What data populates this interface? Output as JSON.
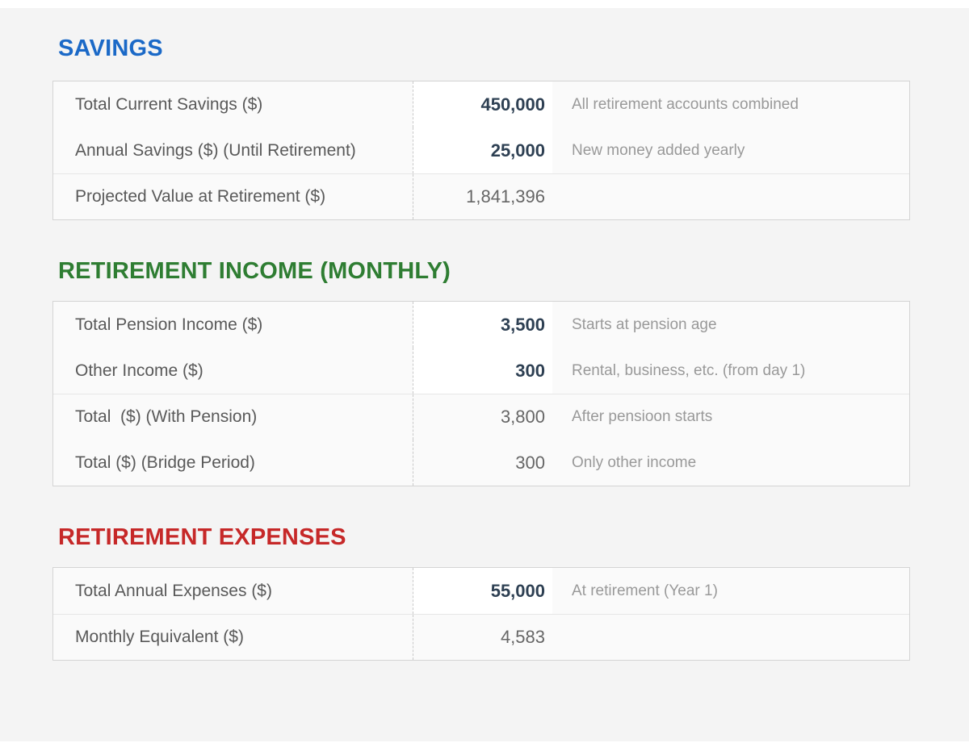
{
  "colors": {
    "page_background": "#f4f4f4",
    "savings_title": "#1b69c7",
    "income_title": "#2e7d32",
    "expenses_title": "#c62828",
    "editable_value_text": "#2e4053",
    "computed_value_text": "#666666",
    "label_text": "#595959",
    "note_text": "#999999"
  },
  "sections": [
    {
      "title": "SAVINGS",
      "title_color": "#1b69c7",
      "rows": [
        {
          "label": "Total Current Savings ($)",
          "value": "450,000",
          "note": "All retirement accounts combined",
          "type": "editable"
        },
        {
          "label": "Annual Savings ($) (Until Retirement)",
          "value": "25,000",
          "note": "New money added yearly",
          "type": "editable"
        },
        {
          "label": "Projected Value at Retirement ($)",
          "value": "1,841,396",
          "note": "",
          "type": "computed"
        }
      ]
    },
    {
      "title": "RETIREMENT INCOME (MONTHLY)",
      "title_color": "#2e7d32",
      "rows": [
        {
          "label": "Total Pension Income ($)",
          "value": "3,500",
          "note": "Starts at pension age",
          "type": "editable"
        },
        {
          "label": "Other Income ($)",
          "value": "300",
          "note": "Rental, business, etc. (from day 1)",
          "type": "editable"
        },
        {
          "label": "Total  ($) (With Pension)",
          "value": "3,800",
          "note": "After pensioon starts",
          "type": "computed"
        },
        {
          "label": "Total ($) (Bridge Period)",
          "value": "300",
          "note": "Only other income",
          "type": "computed"
        }
      ]
    },
    {
      "title": "RETIREMENT EXPENSES",
      "title_color": "#c62828",
      "rows": [
        {
          "label": "Total Annual Expenses ($)",
          "value": "55,000",
          "note": "At retirement (Year 1)",
          "type": "editable"
        },
        {
          "label": "Monthly Equivalent ($)",
          "value": "4,583",
          "note": "",
          "type": "computed"
        }
      ]
    }
  ]
}
